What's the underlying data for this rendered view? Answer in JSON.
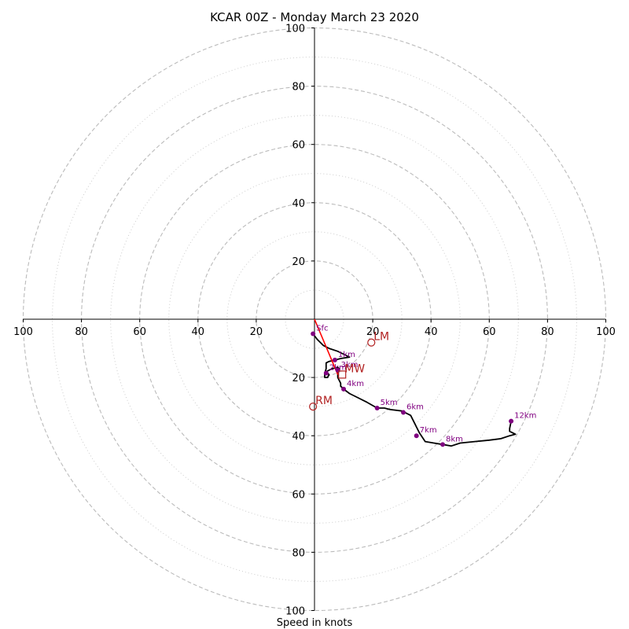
{
  "chart_data": {
    "type": "line",
    "title": "KCAR 00Z - Monday March 23 2020",
    "xlabel": "Speed in knots",
    "xlim": [
      -100,
      100
    ],
    "ylim": [
      -100,
      100
    ],
    "axis_x_ticks": [
      "100",
      "80",
      "60",
      "40",
      "20",
      "20",
      "40",
      "60",
      "80",
      "100"
    ],
    "axis_y_ticks": [
      "100",
      "80",
      "60",
      "40",
      "20",
      "20",
      "40",
      "60",
      "80",
      "100"
    ],
    "major_rings": [
      20,
      40,
      60,
      80,
      100
    ],
    "minor_rings": [
      10,
      30,
      50,
      70,
      90
    ],
    "grid": true,
    "colors": {
      "hodograph": "#000000",
      "height_markers": "#800080",
      "motion_markers": "#b22222",
      "shear_vector": "#ff0000",
      "major_grid": "#bbbbbb",
      "minor_grid": "#cccccc"
    },
    "hodograph": {
      "x": [
        -0.5,
        1,
        3,
        5,
        8,
        10,
        12,
        9,
        7,
        5,
        4,
        4,
        4,
        3.5,
        3.5,
        4.5,
        5,
        4,
        6,
        8,
        8.5,
        8,
        8,
        9,
        9,
        10,
        12,
        15,
        18,
        21.5,
        24,
        26,
        30,
        33,
        34,
        35,
        36,
        38,
        41,
        44,
        47,
        50,
        55,
        60,
        64,
        67,
        69,
        67,
        67,
        67.5
      ],
      "y": [
        -5,
        -7,
        -9,
        -10,
        -11,
        -12,
        -13,
        -13.5,
        -14,
        -14.5,
        -15,
        -16,
        -17,
        -18.5,
        -20,
        -20,
        -19,
        -18,
        -17,
        -16.5,
        -17,
        -18,
        -20,
        -22,
        -23,
        -24,
        -25.5,
        -27,
        -28.5,
        -30.5,
        -30.5,
        -31,
        -31.5,
        -33,
        -35,
        -37,
        -39,
        -42,
        -42.5,
        -43,
        -43.5,
        -42.5,
        -42,
        -41.5,
        -41,
        -40,
        -39.5,
        -38.5,
        -37.5,
        -35
      ]
    },
    "height_markers": [
      {
        "label": "Sfc",
        "x": -0.5,
        "y": -5
      },
      {
        "label": "1km",
        "x": 7,
        "y": -14
      },
      {
        "label": "2km",
        "x": 4,
        "y": -18.5
      },
      {
        "label": "3km",
        "x": 8,
        "y": -17.5
      },
      {
        "label": "4km",
        "x": 10,
        "y": -24
      },
      {
        "label": "5km",
        "x": 21.5,
        "y": -30.5
      },
      {
        "label": "6km",
        "x": 30.5,
        "y": -32
      },
      {
        "label": "7km",
        "x": 35,
        "y": -40
      },
      {
        "label": "8km",
        "x": 44,
        "y": -43
      },
      {
        "label": "12km",
        "x": 67.5,
        "y": -35
      }
    ],
    "storm_motions": [
      {
        "label": "LM",
        "x": 19.5,
        "y": -8,
        "shape": "circle"
      },
      {
        "label": "MW",
        "x": 9.5,
        "y": -19,
        "shape": "square"
      },
      {
        "label": "RM",
        "x": -0.5,
        "y": -30,
        "shape": "circle"
      }
    ],
    "shear_vector": {
      "x": [
        0,
        8
      ],
      "y": [
        0,
        -19
      ]
    }
  }
}
